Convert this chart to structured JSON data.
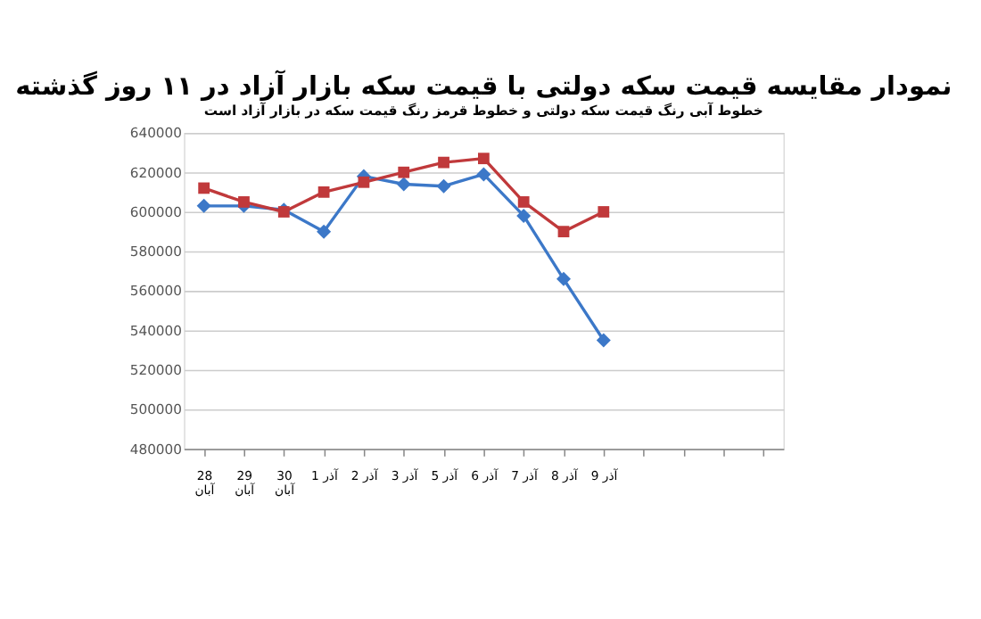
{
  "chart_data": {
    "type": "line",
    "title": "نمودار مقایسه قیمت سکه دولتی با قیمت سکه بازار آزاد در ۱۱ روز گذشته",
    "subtitle": "خطوط آبی رنگ قیمت سکه دولتی و خطوط قرمز رنگ قیمت سکه در بازار آزاد است",
    "categories": [
      "28 آبان",
      "29 آبان",
      "30 آبان",
      "1 آذر",
      "2 آذر",
      "3 آذر",
      "5 آذر",
      "6 آذر",
      "7 آذر",
      "8 آذر",
      "9 آذر",
      null,
      null,
      null,
      null
    ],
    "series": [
      {
        "color": "#3c78c8",
        "marker": "diamond",
        "values": [
          603000,
          603000,
          601000,
          590000,
          618000,
          614000,
          613000,
          619000,
          598000,
          566000,
          535000,
          null,
          null,
          null,
          null
        ]
      },
      {
        "color": "#c0393b",
        "marker": "square",
        "values": [
          612000,
          605000,
          600000,
          610000,
          615000,
          620000,
          625000,
          627000,
          605000,
          590000,
          600000,
          null,
          null,
          null,
          null
        ]
      }
    ],
    "ylim": [
      480000,
      640000
    ],
    "yticks": [
      480000,
      500000,
      520000,
      540000,
      560000,
      580000,
      600000,
      620000,
      640000
    ],
    "grid": "y",
    "legend": false
  }
}
